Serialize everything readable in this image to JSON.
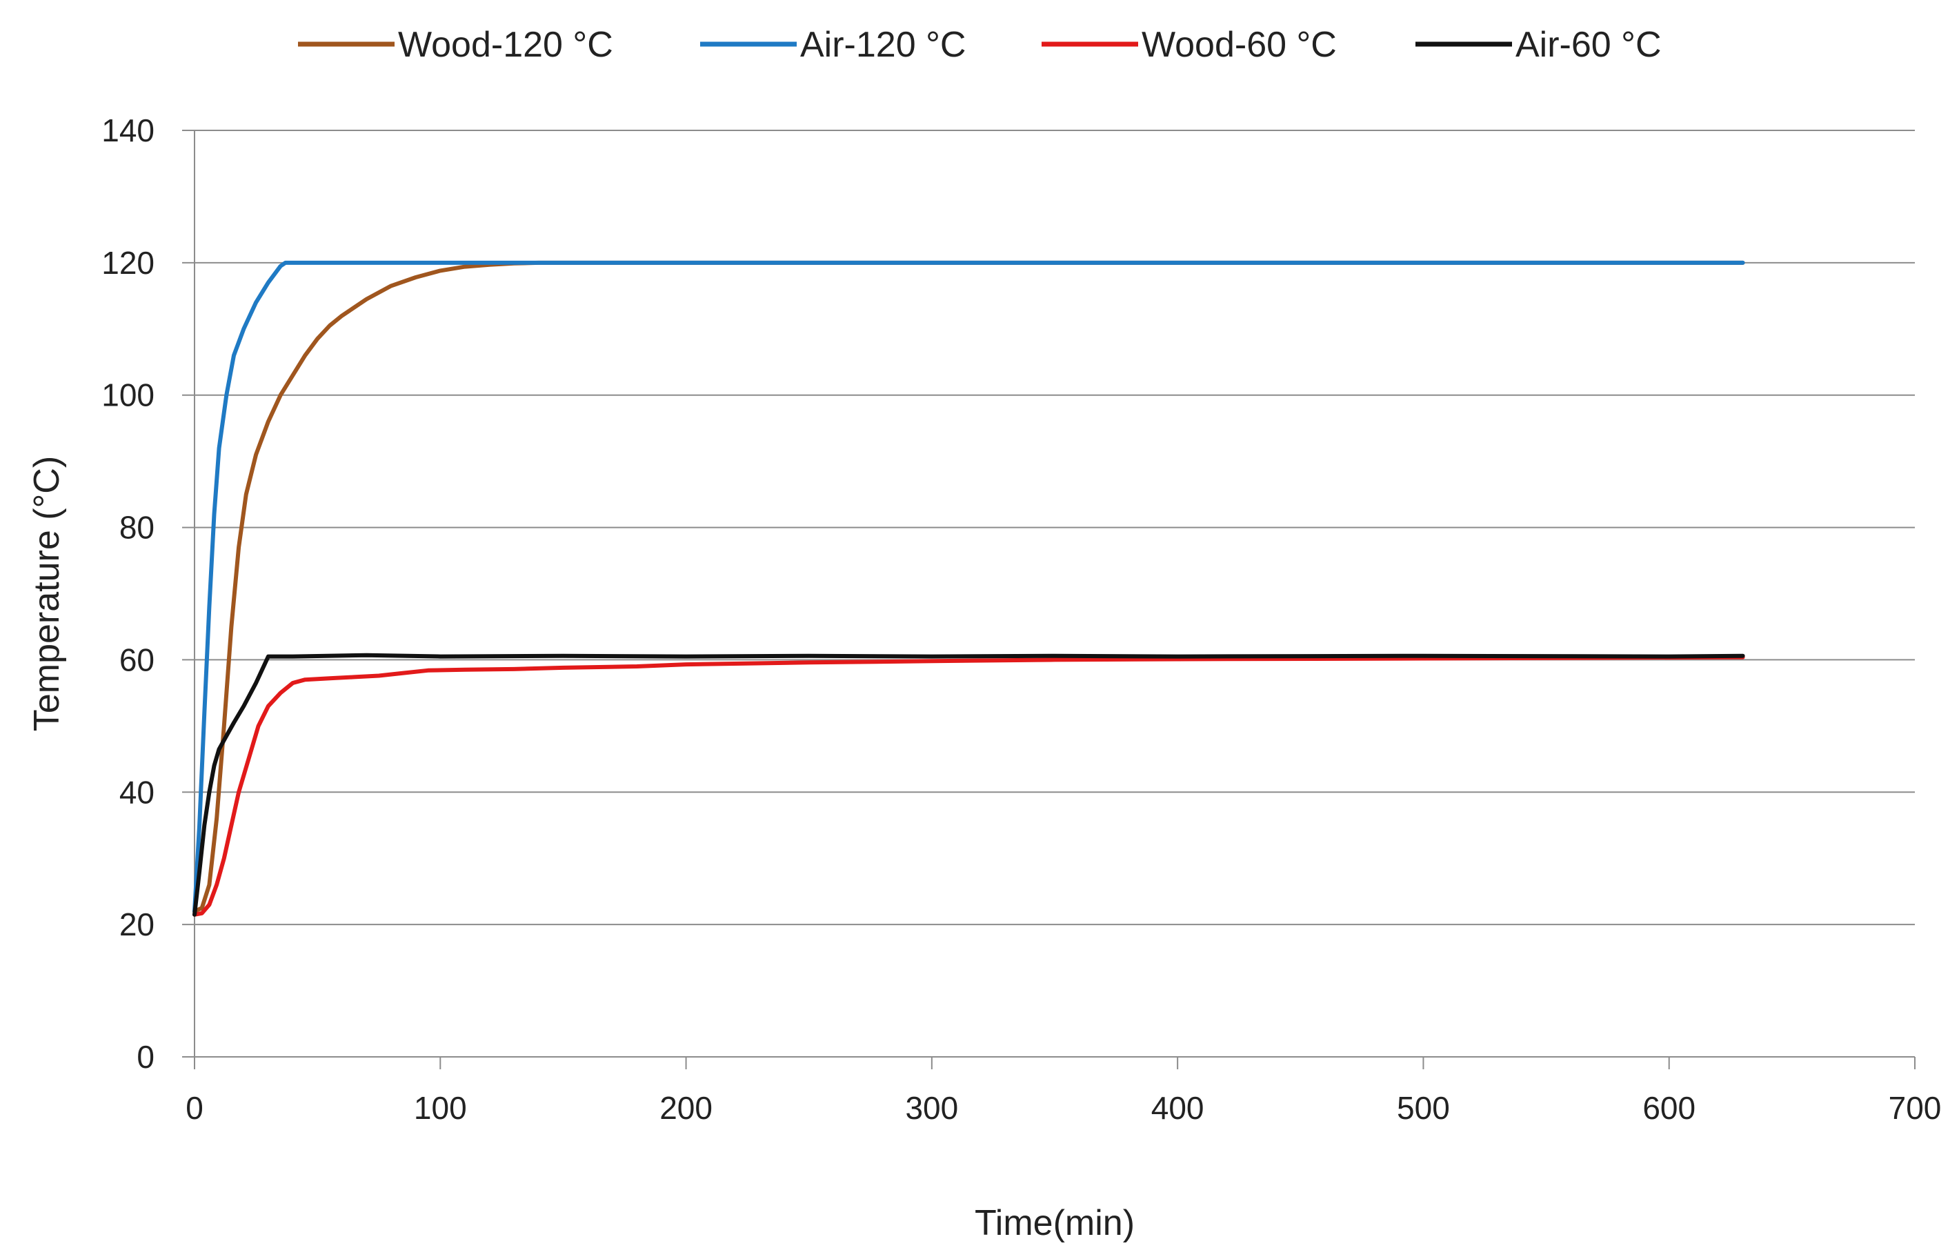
{
  "chart_data": {
    "type": "line",
    "title": "",
    "xlabel": "Time(min)",
    "ylabel": "Temperature (°C)",
    "xlim": [
      0,
      700
    ],
    "ylim": [
      0,
      140
    ],
    "xticks": [
      0,
      100,
      200,
      300,
      400,
      500,
      600,
      700
    ],
    "yticks": [
      0,
      20,
      40,
      60,
      80,
      100,
      120,
      140
    ],
    "grid": "horizontal",
    "legend_position": "top",
    "series": [
      {
        "name": "Wood-120 °C",
        "color": "#a0561e",
        "points": [
          [
            0,
            22
          ],
          [
            3,
            22.5
          ],
          [
            6,
            26
          ],
          [
            9,
            36
          ],
          [
            12,
            50
          ],
          [
            15,
            65
          ],
          [
            18,
            77
          ],
          [
            21,
            85
          ],
          [
            25,
            91
          ],
          [
            30,
            96
          ],
          [
            35,
            100
          ],
          [
            40,
            103
          ],
          [
            45,
            106
          ],
          [
            50,
            108.5
          ],
          [
            55,
            110.5
          ],
          [
            60,
            112
          ],
          [
            70,
            114.5
          ],
          [
            80,
            116.5
          ],
          [
            90,
            117.8
          ],
          [
            100,
            118.8
          ],
          [
            110,
            119.4
          ],
          [
            120,
            119.7
          ],
          [
            130,
            119.9
          ],
          [
            140,
            120
          ],
          [
            200,
            120
          ],
          [
            300,
            120
          ],
          [
            400,
            120
          ],
          [
            500,
            120
          ],
          [
            630,
            120
          ]
        ]
      },
      {
        "name": "Air-120 °C",
        "color": "#1f7ac4",
        "points": [
          [
            0,
            22
          ],
          [
            2,
            35
          ],
          [
            4,
            52
          ],
          [
            6,
            68
          ],
          [
            8,
            82
          ],
          [
            10,
            92
          ],
          [
            13,
            100
          ],
          [
            16,
            106
          ],
          [
            20,
            110
          ],
          [
            25,
            114
          ],
          [
            30,
            117
          ],
          [
            35,
            119.5
          ],
          [
            37,
            120
          ],
          [
            100,
            120
          ],
          [
            200,
            120
          ],
          [
            300,
            120
          ],
          [
            400,
            120
          ],
          [
            500,
            120
          ],
          [
            600,
            120
          ],
          [
            630,
            120
          ]
        ]
      },
      {
        "name": "Wood-60 °C",
        "color": "#e21a1a",
        "points": [
          [
            0,
            21.5
          ],
          [
            3,
            21.7
          ],
          [
            6,
            23
          ],
          [
            9,
            26
          ],
          [
            12,
            30
          ],
          [
            15,
            35
          ],
          [
            18,
            40
          ],
          [
            22,
            45
          ],
          [
            26,
            50
          ],
          [
            30,
            53
          ],
          [
            35,
            55
          ],
          [
            40,
            56.5
          ],
          [
            45,
            57
          ],
          [
            55,
            57.2
          ],
          [
            65,
            57.4
          ],
          [
            75,
            57.6
          ],
          [
            85,
            58
          ],
          [
            95,
            58.4
          ],
          [
            110,
            58.5
          ],
          [
            130,
            58.6
          ],
          [
            150,
            58.8
          ],
          [
            180,
            59
          ],
          [
            200,
            59.3
          ],
          [
            250,
            59.6
          ],
          [
            300,
            59.8
          ],
          [
            350,
            60
          ],
          [
            400,
            60.1
          ],
          [
            500,
            60.2
          ],
          [
            630,
            60.4
          ]
        ]
      },
      {
        "name": "Air-60 °C",
        "color": "#111111",
        "points": [
          [
            0,
            21.5
          ],
          [
            2,
            28
          ],
          [
            4,
            35
          ],
          [
            6,
            40
          ],
          [
            8,
            44
          ],
          [
            10,
            46.5
          ],
          [
            13,
            48.5
          ],
          [
            16,
            50.5
          ],
          [
            20,
            53
          ],
          [
            25,
            56.5
          ],
          [
            30,
            60.5
          ],
          [
            40,
            60.5
          ],
          [
            70,
            60.7
          ],
          [
            100,
            60.5
          ],
          [
            150,
            60.6
          ],
          [
            200,
            60.5
          ],
          [
            250,
            60.6
          ],
          [
            300,
            60.5
          ],
          [
            350,
            60.6
          ],
          [
            400,
            60.5
          ],
          [
            500,
            60.6
          ],
          [
            600,
            60.5
          ],
          [
            630,
            60.6
          ]
        ]
      }
    ]
  }
}
